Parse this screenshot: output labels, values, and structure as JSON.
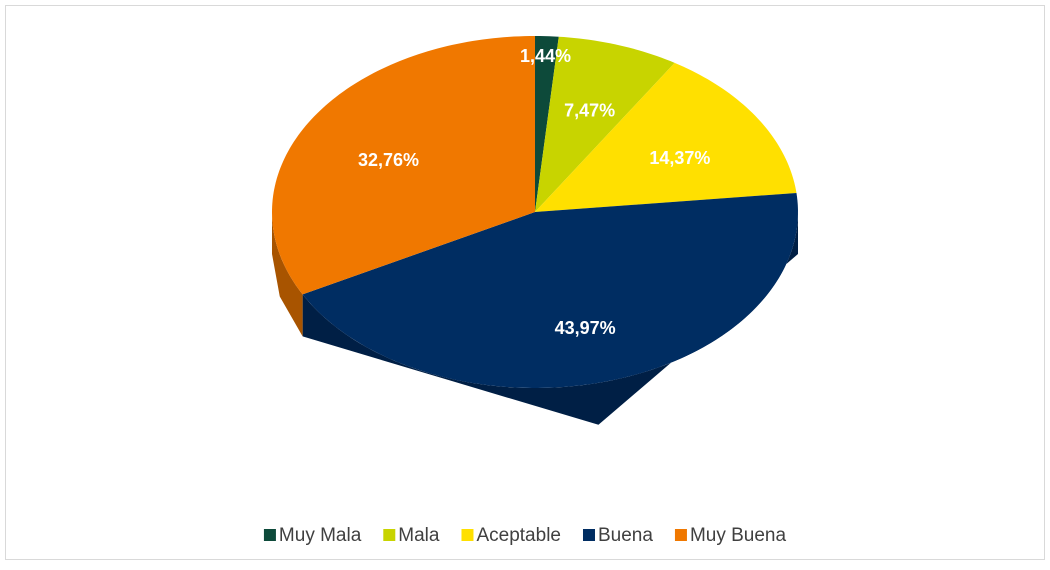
{
  "chart_data": {
    "type": "pie",
    "categories": [
      "Muy Mala",
      "Mala",
      "Aceptable",
      "Buena",
      "Muy Buena"
    ],
    "values": [
      1.44,
      7.47,
      14.37,
      43.97,
      32.76
    ],
    "value_labels": [
      "1,44%",
      "7,47%",
      "14,37%",
      "43,97%",
      "32,76%"
    ],
    "colors": [
      "#0d4a3a",
      "#c8d400",
      "#ffe000",
      "#002d62",
      "#f07800"
    ],
    "legend": "bottom"
  }
}
